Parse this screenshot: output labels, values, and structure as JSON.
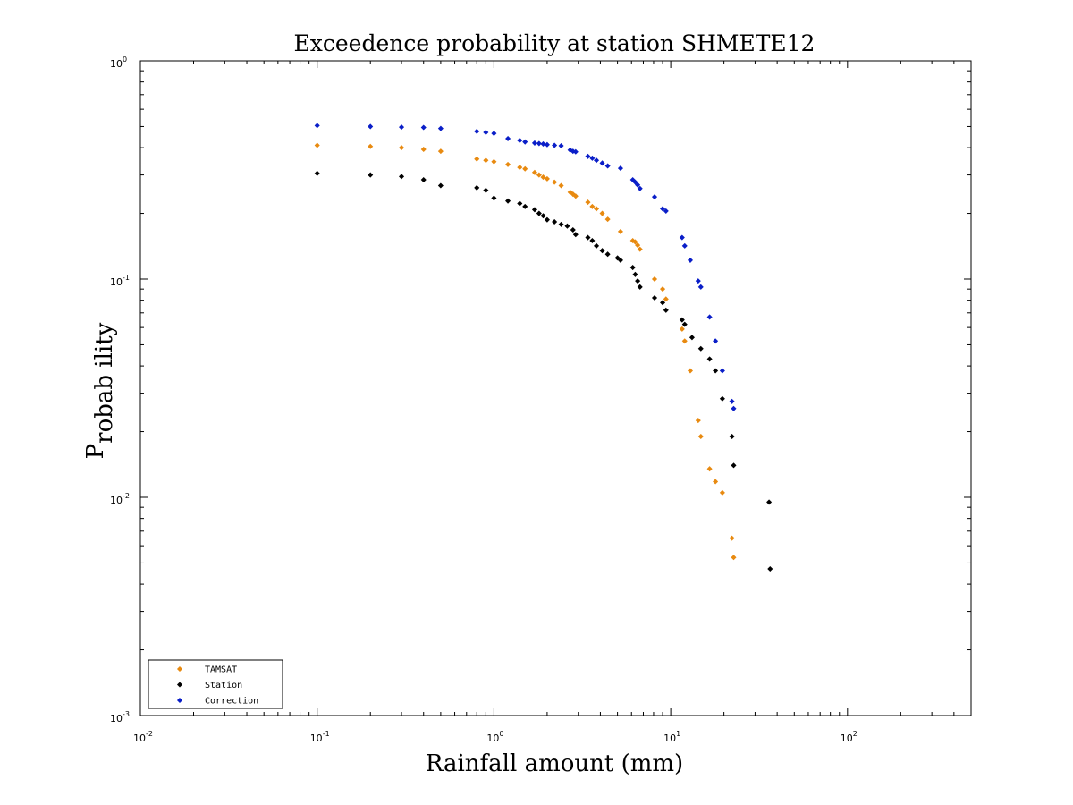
{
  "chart_data": {
    "type": "scatter",
    "title": "Exceedence probability at station SHMETE12",
    "xlabel": "Rainfall amount (mm)",
    "ylabel_base": "P",
    "ylabel_sub": "robab ility",
    "xscale": "log",
    "yscale": "log",
    "xlim": [
      0.01,
      500
    ],
    "ylim": [
      0.001,
      1
    ],
    "x_ticks": [
      {
        "base": "10",
        "exp": "-2",
        "value": 0.01
      },
      {
        "base": "10",
        "exp": "-1",
        "value": 0.1
      },
      {
        "base": "10",
        "exp": "0",
        "value": 1
      },
      {
        "base": "10",
        "exp": "1",
        "value": 10
      },
      {
        "base": "10",
        "exp": "2",
        "value": 100
      }
    ],
    "y_ticks": [
      {
        "base": "10",
        "exp": "-3",
        "value": 0.001
      },
      {
        "base": "10",
        "exp": "-2",
        "value": 0.01
      },
      {
        "base": "10",
        "exp": "-1",
        "value": 0.1
      },
      {
        "base": "10",
        "exp": "0",
        "value": 1
      }
    ],
    "grid": false,
    "legend_position": "bottom-left",
    "series": [
      {
        "name": "TAMSAT",
        "color": "#e88a10",
        "x": [
          0.1,
          0.2,
          0.3,
          0.4,
          0.5,
          0.8,
          0.9,
          1.0,
          1.2,
          1.4,
          1.5,
          1.7,
          1.8,
          1.9,
          2.0,
          2.2,
          2.4,
          2.7,
          2.8,
          2.9,
          3.4,
          3.6,
          3.8,
          4.1,
          4.4,
          5.2,
          6.1,
          6.3,
          6.5,
          6.7,
          8.1,
          9.0,
          9.4,
          11.6,
          12.0,
          12.9,
          14.3,
          14.8,
          16.6,
          17.9,
          19.6,
          22.2,
          22.7
        ],
        "y": [
          0.41,
          0.405,
          0.4,
          0.393,
          0.385,
          0.355,
          0.35,
          0.345,
          0.335,
          0.325,
          0.32,
          0.308,
          0.3,
          0.293,
          0.288,
          0.278,
          0.268,
          0.25,
          0.245,
          0.24,
          0.225,
          0.215,
          0.21,
          0.2,
          0.188,
          0.165,
          0.15,
          0.148,
          0.143,
          0.137,
          0.1,
          0.09,
          0.081,
          0.059,
          0.052,
          0.038,
          0.0225,
          0.019,
          0.0135,
          0.0118,
          0.0105,
          0.0065,
          0.0053
        ]
      },
      {
        "name": "Station",
        "color": "#000000",
        "x": [
          0.1,
          0.2,
          0.3,
          0.4,
          0.5,
          0.8,
          0.9,
          1.0,
          1.2,
          1.4,
          1.5,
          1.7,
          1.8,
          1.9,
          2.0,
          2.2,
          2.4,
          2.6,
          2.8,
          2.9,
          3.4,
          3.6,
          3.8,
          4.1,
          4.4,
          5.0,
          5.2,
          6.1,
          6.3,
          6.5,
          6.7,
          8.1,
          9.0,
          9.4,
          11.6,
          12.0,
          13.2,
          14.8,
          16.6,
          17.9,
          19.6,
          22.2,
          22.7,
          36.0,
          36.5
        ],
        "y": [
          0.305,
          0.3,
          0.295,
          0.285,
          0.268,
          0.262,
          0.255,
          0.235,
          0.228,
          0.222,
          0.215,
          0.208,
          0.2,
          0.195,
          0.187,
          0.183,
          0.178,
          0.175,
          0.168,
          0.16,
          0.155,
          0.15,
          0.142,
          0.135,
          0.13,
          0.125,
          0.122,
          0.113,
          0.105,
          0.098,
          0.092,
          0.082,
          0.078,
          0.072,
          0.065,
          0.062,
          0.054,
          0.048,
          0.043,
          0.038,
          0.0283,
          0.019,
          0.014,
          0.0095,
          0.0047
        ]
      },
      {
        "name": "Correction",
        "color": "#0a1ec8",
        "x": [
          0.1,
          0.2,
          0.3,
          0.4,
          0.5,
          0.8,
          0.9,
          1.0,
          1.2,
          1.4,
          1.5,
          1.7,
          1.8,
          1.9,
          2.0,
          2.2,
          2.4,
          2.7,
          2.8,
          2.9,
          3.4,
          3.6,
          3.8,
          4.1,
          4.4,
          5.2,
          6.1,
          6.3,
          6.5,
          6.7,
          8.1,
          9.0,
          9.4,
          11.6,
          12.0,
          12.9,
          14.3,
          14.8,
          16.6,
          17.9,
          19.6,
          22.2,
          22.7
        ],
        "y": [
          0.505,
          0.5,
          0.497,
          0.495,
          0.49,
          0.475,
          0.47,
          0.465,
          0.44,
          0.432,
          0.425,
          0.42,
          0.418,
          0.416,
          0.413,
          0.41,
          0.408,
          0.39,
          0.385,
          0.383,
          0.365,
          0.358,
          0.35,
          0.34,
          0.33,
          0.322,
          0.285,
          0.278,
          0.27,
          0.26,
          0.238,
          0.21,
          0.205,
          0.155,
          0.142,
          0.122,
          0.098,
          0.092,
          0.067,
          0.052,
          0.038,
          0.0275,
          0.0255
        ]
      }
    ]
  }
}
